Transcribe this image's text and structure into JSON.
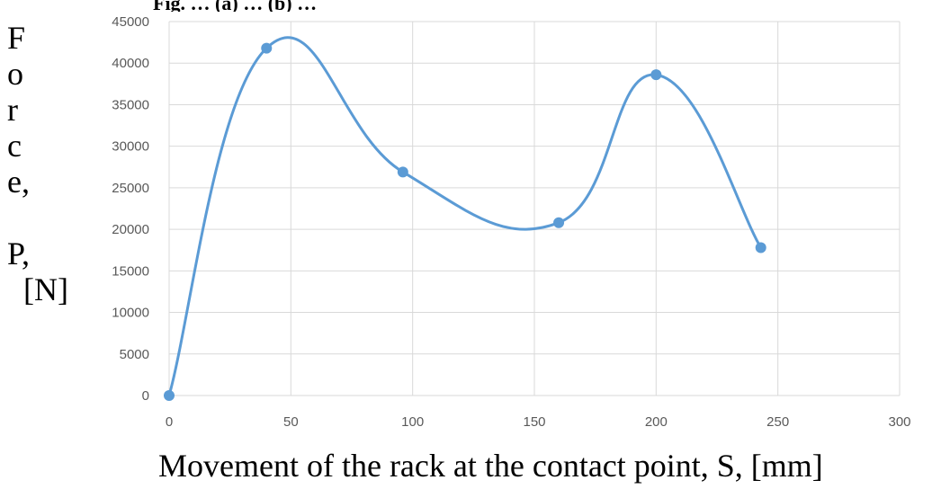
{
  "header_fragment": "Fig. … (a) … (b) …",
  "chart_data": {
    "type": "line",
    "smooth": true,
    "title": "",
    "ylabel_lines": [
      "F",
      "o",
      "r",
      "c",
      "e,",
      "",
      "P,",
      "[N]"
    ],
    "ylabel": "Force, P, [N]",
    "xlabel": "Movement of the rack at the contact point, S, [mm]",
    "xlim": [
      0,
      300
    ],
    "ylim": [
      0,
      45000
    ],
    "x_ticks": [
      0,
      50,
      100,
      150,
      200,
      250,
      300
    ],
    "y_ticks": [
      0,
      5000,
      10000,
      15000,
      20000,
      25000,
      30000,
      35000,
      40000,
      45000
    ],
    "grid": true,
    "legend": "none",
    "series": [
      {
        "x": [
          0,
          40,
          96,
          160,
          200,
          243
        ],
        "y": [
          0,
          41800,
          26900,
          20800,
          38600,
          17800
        ]
      }
    ],
    "colors": {
      "line": "#5b9bd5",
      "grid": "#d9d9d9",
      "tick_text": "#595959"
    }
  }
}
